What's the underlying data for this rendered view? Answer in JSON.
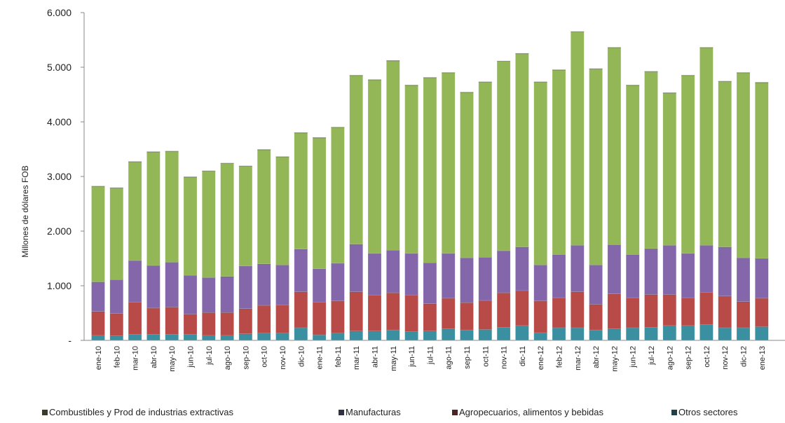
{
  "chart_data": {
    "type": "bar",
    "stacked": true,
    "title": "",
    "xlabel": "",
    "ylabel": "Millones  de dólares FOB",
    "ylim": [
      0,
      6000
    ],
    "yticks": [
      0,
      1000,
      2000,
      3000,
      4000,
      5000,
      6000
    ],
    "ytick_labels": [
      "-",
      "1.000",
      "2.000",
      "3.000",
      "4.000",
      "5.000",
      "6.000"
    ],
    "grid": false,
    "legend_position": "bottom",
    "categories": [
      "ene-10",
      "feb-10",
      "mar-10",
      "abr-10",
      "may-10",
      "jun-10",
      "jul-10",
      "ago-10",
      "sep-10",
      "oct-10",
      "nov-10",
      "dic-10",
      "ene-11",
      "feb-11",
      "mar-11",
      "abr-11",
      "may-11",
      "jun-11",
      "jul-11",
      "ago-11",
      "sep-11",
      "oct-11",
      "nov-11",
      "dic-11",
      "ene-12",
      "feb-12",
      "mar-12",
      "abr-12",
      "may-12",
      "jun-12",
      "jul-12",
      "ago-12",
      "sep-12",
      "oct-12",
      "nov-12",
      "dic-12",
      "ene-13"
    ],
    "series": [
      {
        "name": "Otros sectores",
        "color": "#3a8fa0",
        "values": [
          90,
          80,
          110,
          110,
          110,
          110,
          90,
          90,
          120,
          130,
          130,
          230,
          100,
          130,
          170,
          170,
          190,
          160,
          170,
          210,
          190,
          200,
          240,
          270,
          140,
          230,
          230,
          190,
          210,
          230,
          240,
          270,
          270,
          290,
          230,
          230,
          250
        ]
      },
      {
        "name": "Agropecuarios, alimentos y bebidas",
        "color": "#b84a48",
        "values": [
          440,
          410,
          590,
          480,
          500,
          370,
          420,
          420,
          460,
          510,
          520,
          660,
          600,
          590,
          720,
          660,
          680,
          670,
          500,
          560,
          500,
          530,
          630,
          640,
          580,
          550,
          660,
          470,
          640,
          550,
          600,
          570,
          510,
          590,
          580,
          480,
          520
        ]
      },
      {
        "name": "Manufacturas",
        "color": "#8466aa",
        "values": [
          540,
          620,
          760,
          780,
          820,
          710,
          640,
          660,
          780,
          760,
          730,
          780,
          610,
          690,
          870,
          760,
          780,
          760,
          750,
          820,
          820,
          790,
          770,
          800,
          660,
          790,
          850,
          720,
          900,
          790,
          840,
          900,
          810,
          860,
          900,
          800,
          730
        ]
      },
      {
        "name": "Combustibles y Prod de industrias extractivas",
        "color": "#93b657",
        "values": [
          1750,
          1680,
          1810,
          2080,
          2030,
          1800,
          1950,
          2070,
          1830,
          2090,
          1980,
          2130,
          2400,
          2490,
          3090,
          3180,
          3470,
          3080,
          3390,
          3310,
          3030,
          3210,
          3470,
          3540,
          3350,
          3380,
          3910,
          3590,
          3610,
          3100,
          3240,
          2790,
          3260,
          3620,
          3030,
          3390,
          3220
        ]
      }
    ]
  },
  "legend": [
    {
      "label": "Combustibles y Prod de industrias extractivas",
      "color": "#3a3a2a"
    },
    {
      "label": "Manufacturas",
      "color": "#2f3140"
    },
    {
      "label": "Agropecuarios, alimentos y bebidas",
      "color": "#4a2424"
    },
    {
      "label": "Otros sectores",
      "color": "#1f4045"
    }
  ]
}
